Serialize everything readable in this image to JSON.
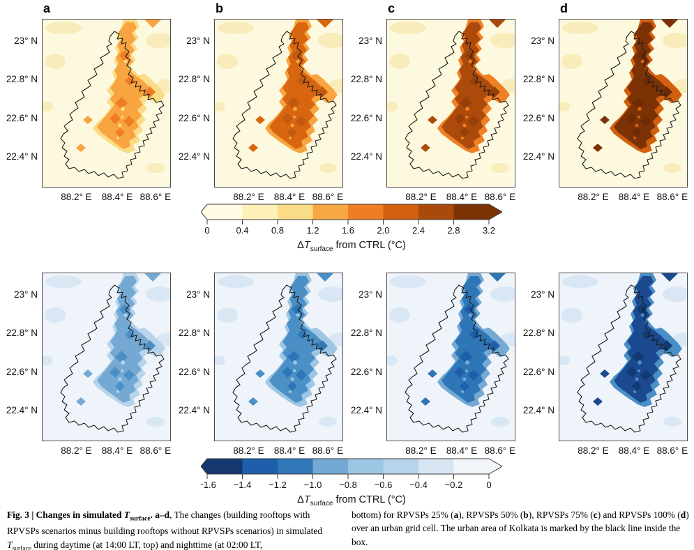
{
  "axes": {
    "y": [
      "23° N",
      "22.8° N",
      "22.6° N",
      "22.4° N"
    ],
    "x": [
      "88.2° E",
      "88.4° E",
      "88.6° E"
    ]
  },
  "panels": {
    "day": {
      "bg": "#FDF9DE",
      "patch": "#F8ECBA",
      "items": [
        {
          "letter": "a",
          "edge": "#FBDC86",
          "band": "#F8A440",
          "core": "#EF7D22"
        },
        {
          "letter": "b",
          "edge": "#F8A440",
          "band": "#D8650F",
          "core": "#C05A0E"
        },
        {
          "letter": "c",
          "edge": "#F08026",
          "band": "#AC4A0C",
          "core": "#953F09"
        },
        {
          "letter": "d",
          "edge": "#D2600F",
          "band": "#7D3206",
          "core": "#6E2B05"
        }
      ]
    },
    "night": {
      "bg": "#EFF4FA",
      "patch": "#D9E7F4",
      "items": [
        {
          "letter": "",
          "edge": "#B8D4EA",
          "band": "#74A9D4",
          "core": "#4A8FC6"
        },
        {
          "letter": "",
          "edge": "#9CC6E3",
          "band": "#4A8FC6",
          "core": "#2E76B6"
        },
        {
          "letter": "",
          "edge": "#74A9D4",
          "band": "#2E76B6",
          "core": "#1D5FAA"
        },
        {
          "letter": "",
          "edge": "#4A8FC6",
          "band": "#1B4A90",
          "core": "#123A72"
        }
      ]
    }
  },
  "colorbars": {
    "day": {
      "ticks": [
        "0",
        "0.4",
        "0.8",
        "1.2",
        "1.6",
        "2.0",
        "2.4",
        "2.8",
        "3.2"
      ],
      "colors": [
        "#FFFCE3",
        "#FDF0B8",
        "#FBDC86",
        "#F8A843",
        "#EF7D22",
        "#D2600F",
        "#A94A0C",
        "#7D3206"
      ],
      "label": {
        "prefix": "Δ",
        "t": "T",
        "sub": "surface",
        "suffix": " from CTRL (°C)"
      }
    },
    "night": {
      "ticks": [
        "−1.6",
        "−1.4",
        "−1.2",
        "−1.0",
        "−0.8",
        "−0.6",
        "−0.4",
        "−0.2",
        "0"
      ],
      "colors": [
        "#14386F",
        "#1D5FAA",
        "#3077B8",
        "#74A9D4",
        "#9CC6E3",
        "#B8D4EA",
        "#D8E5F3",
        "#F2F6FB"
      ],
      "label": {
        "prefix": "Δ",
        "t": "T",
        "sub": "surface",
        "suffix": " from CTRL (°C)"
      }
    }
  },
  "caption": {
    "left": [
      {
        "t": "Fig. 3 | Changes in simulated "
      },
      {
        "t": "T"
      },
      {
        "t": "surface"
      },
      {
        "t": ". "
      },
      {
        "t": "a–d"
      },
      {
        "t": ", The changes (building rooftops with RPVSPs scenarios minus building rooftops without RPVSPs scenarios) in simulated "
      },
      {
        "t": "T"
      },
      {
        "t": "surface"
      },
      {
        "t": " during daytime (at 14:00 LT, top) and nighttime (at 02:00 LT,"
      }
    ],
    "right": [
      {
        "t": "bottom) for RPVSPs 25% ("
      },
      {
        "t": "a"
      },
      {
        "t": "), RPVSPs 50% ("
      },
      {
        "t": "b"
      },
      {
        "t": "), RPVSPs 75% ("
      },
      {
        "t": "c"
      },
      {
        "t": ") and RPVSPs 100% ("
      },
      {
        "t": "d"
      },
      {
        "t": ") over an urban grid cell. The urban area of Kolkata is marked by the black line inside the box."
      }
    ]
  }
}
